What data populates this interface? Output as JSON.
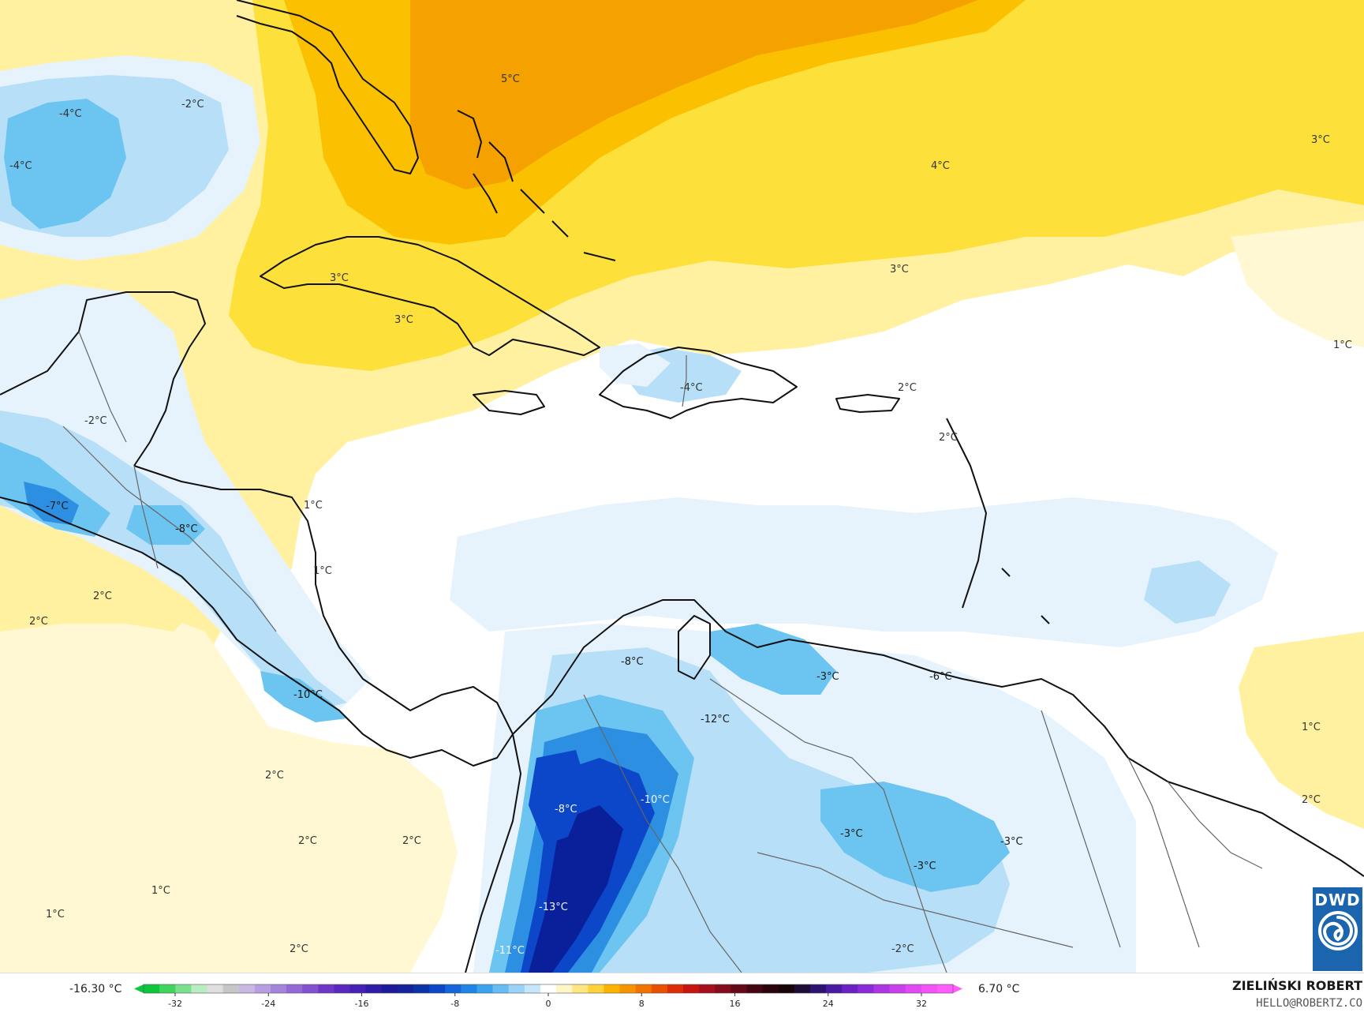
{
  "colors": {
    "orange_dark": "#f5a100",
    "orange": "#fbc100",
    "yellow": "#fde03a",
    "light_yellow": "#fff1a0",
    "pale_yellow": "#fff8d2",
    "white": "#ffffff",
    "pale_blue": "#e6f3fc",
    "light_blue": "#b7e0f8",
    "sky_blue": "#6cc4f0",
    "blue": "#2d8fe2",
    "dark_blue": "#0b47c8",
    "navy": "#0a1f9a",
    "coast": "#111111",
    "border": "#666666"
  },
  "map": {
    "labels": [
      {
        "text": "5°C"
      },
      {
        "text": "-4°C"
      },
      {
        "text": "-2°C"
      },
      {
        "text": "-4°C"
      },
      {
        "text": "4°C"
      },
      {
        "text": "3°C"
      },
      {
        "text": "3°C"
      },
      {
        "text": "3°C"
      },
      {
        "text": "3°C"
      },
      {
        "text": "1°C"
      },
      {
        "text": "-4°C"
      },
      {
        "text": "2°C"
      },
      {
        "text": "2°C"
      },
      {
        "text": "-2°C"
      },
      {
        "text": "-7°C"
      },
      {
        "text": "-8°C"
      },
      {
        "text": "1°C"
      },
      {
        "text": "1°C"
      },
      {
        "text": "2°C"
      },
      {
        "text": "2°C"
      },
      {
        "text": "-10°C"
      },
      {
        "text": "-8°C"
      },
      {
        "text": "-3°C"
      },
      {
        "text": "-6°C"
      },
      {
        "text": "-12°C"
      },
      {
        "text": "1°C"
      },
      {
        "text": "2°C"
      },
      {
        "text": "2°C"
      },
      {
        "text": "2°C"
      },
      {
        "text": "2°C"
      },
      {
        "text": "-8°C"
      },
      {
        "text": "-10°C"
      },
      {
        "text": "-3°C"
      },
      {
        "text": "-3°C"
      },
      {
        "text": "-3°C"
      },
      {
        "text": "1°C"
      },
      {
        "text": "1°C"
      },
      {
        "text": "-13°C"
      },
      {
        "text": "-11°C"
      },
      {
        "text": "2°C"
      },
      {
        "text": "-2°C"
      }
    ]
  },
  "logo": {
    "text": "DWD"
  },
  "legend": {
    "min_label": "-16.30 °C",
    "max_label": "6.70 °C",
    "ticks": [
      "-32",
      "-24",
      "-16",
      "-8",
      "0",
      "8",
      "16",
      "24",
      "32"
    ],
    "colors": [
      "#0cc63b",
      "#3fd45c",
      "#79e08c",
      "#b9ecc0",
      "#dedede",
      "#c6c6c6",
      "#c9b8e3",
      "#b79ee0",
      "#a584dc",
      "#9469d6",
      "#8350cf",
      "#6f37c6",
      "#5b28bd",
      "#4620b4",
      "#2f1ca6",
      "#1d1a99",
      "#14239a",
      "#0a33a8",
      "#0b47c8",
      "#1565db",
      "#1e85e6",
      "#3aa3ee",
      "#66bdf3",
      "#9ad3f7",
      "#c6e6fb",
      "#ffffff",
      "#fff6c8",
      "#ffe680",
      "#ffd23a",
      "#fdb100",
      "#f89300",
      "#f27300",
      "#e95000",
      "#dc2e06",
      "#c51612",
      "#a6101c",
      "#840c1c",
      "#640917",
      "#450611",
      "#2a040a",
      "#180308",
      "#1d0c38",
      "#2d1272",
      "#4a1aa3",
      "#6a22c4",
      "#8b2bd7",
      "#ac36e2",
      "#c93fec",
      "#e248f3",
      "#f352f8",
      "#ff5cfd"
    ]
  },
  "author": {
    "name": "ZIELIŃSKI ROBERT",
    "email": "HELLO@ROBERTZ.CO"
  }
}
